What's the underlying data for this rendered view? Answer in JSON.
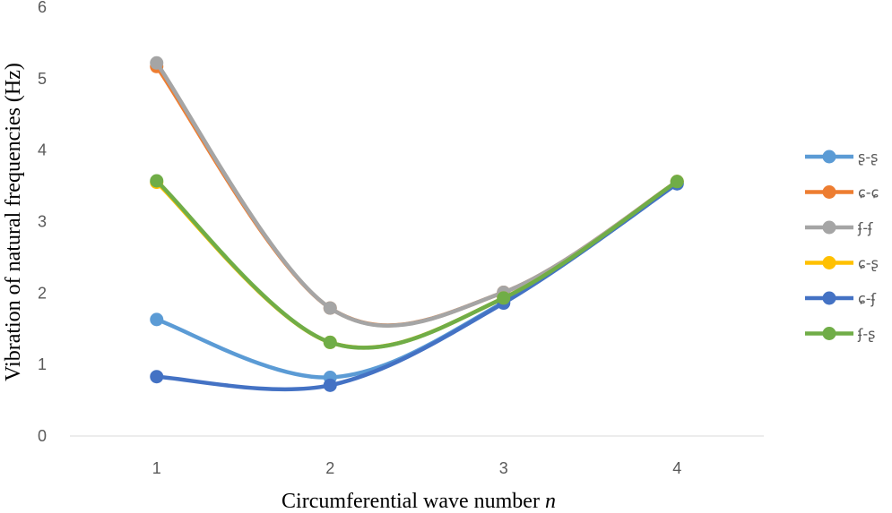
{
  "chart_data": {
    "type": "line",
    "title": "",
    "xlabel": "Circumferential wave number",
    "xlabel_var": "n",
    "ylabel": "Vibration of natural frequencies (Hz)",
    "x": [
      1,
      2,
      3,
      4
    ],
    "x_tick_labels": [
      "1",
      "2",
      "3",
      "4"
    ],
    "ylim": [
      0,
      6
    ],
    "y_ticks": [
      0,
      1,
      2,
      3,
      4,
      5,
      6
    ],
    "y_tick_labels": [
      "0",
      "1",
      "2",
      "3",
      "4",
      "5",
      "6"
    ],
    "grid": false,
    "smooth": true,
    "legend_position": "right",
    "series": [
      {
        "name": "ʂ-ʂ",
        "color": "#5B9BD5",
        "values": [
          1.63,
          0.82,
          1.87,
          3.53
        ]
      },
      {
        "name": "ɕ-ɕ",
        "color": "#ED7D31",
        "values": [
          5.17,
          1.79,
          2.01,
          3.56
        ]
      },
      {
        "name": "ʄ-ʄ",
        "color": "#A5A5A5",
        "values": [
          5.22,
          1.79,
          2.01,
          3.56
        ]
      },
      {
        "name": "ɕ-ʂ",
        "color": "#FFC000",
        "values": [
          3.55,
          1.31,
          1.93,
          3.56
        ]
      },
      {
        "name": "ɕ-ʄ",
        "color": "#4472C4",
        "values": [
          0.83,
          0.71,
          1.86,
          3.53
        ]
      },
      {
        "name": "ʄ-ʂ",
        "color": "#70AD47",
        "values": [
          3.57,
          1.31,
          1.93,
          3.56
        ]
      }
    ]
  }
}
